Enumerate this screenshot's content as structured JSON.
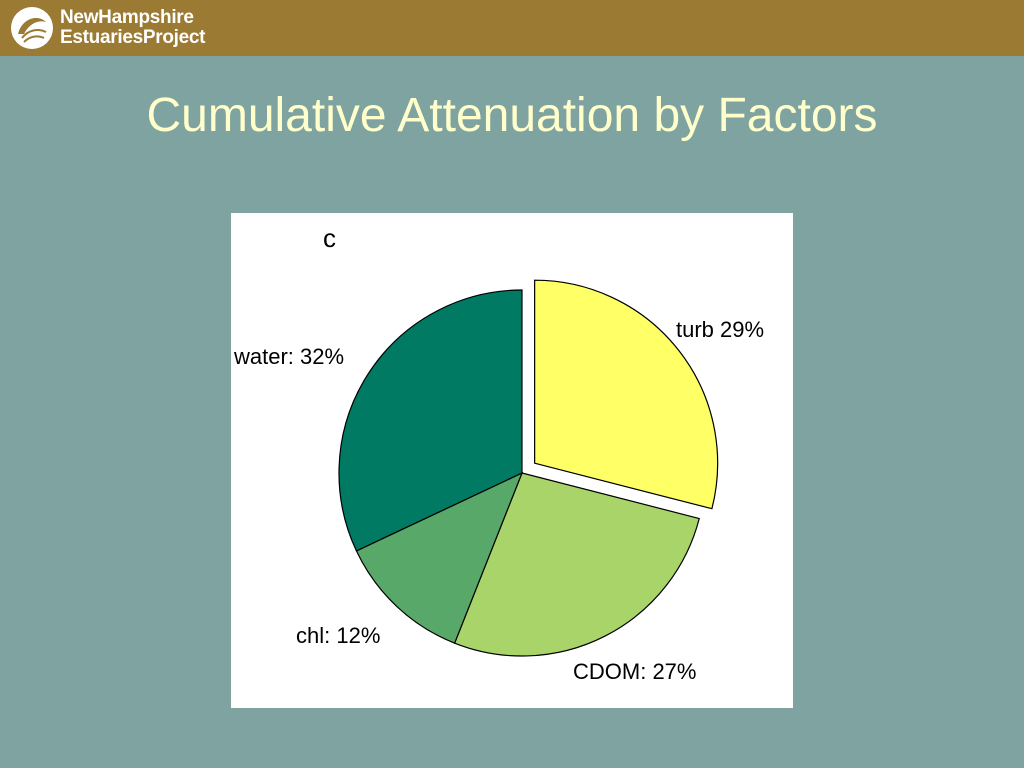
{
  "header": {
    "logo_line1": "NewHampshire",
    "logo_line2": "EstuariesProject",
    "logo_icon": "shell-logo-icon",
    "bar_color": "#9b7b34"
  },
  "slide": {
    "title": "Cumulative Attenuation by Factors",
    "background": "#7fa3a0",
    "title_color": "#ffffcc"
  },
  "chart_data": {
    "type": "pie",
    "panel_label": "c",
    "slices": [
      {
        "name": "turb",
        "value": 29,
        "label": "turb 29%",
        "color": "#ffff66",
        "exploded": true
      },
      {
        "name": "CDOM",
        "value": 27,
        "label": "CDOM: 27%",
        "color": "#a8d46a",
        "exploded": false
      },
      {
        "name": "chl",
        "value": 12,
        "label": "chl: 12%",
        "color": "#57a869",
        "exploded": false
      },
      {
        "name": "water",
        "value": 32,
        "label": "water: 32%",
        "color": "#007a62",
        "exploded": false
      }
    ],
    "start_angle_deg": 0,
    "direction": "clockwise"
  }
}
